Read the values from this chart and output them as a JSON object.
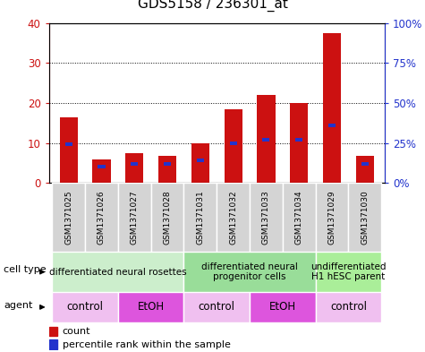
{
  "title": "GDS5158 / 236301_at",
  "samples": [
    "GSM1371025",
    "GSM1371026",
    "GSM1371027",
    "GSM1371028",
    "GSM1371031",
    "GSM1371032",
    "GSM1371033",
    "GSM1371034",
    "GSM1371029",
    "GSM1371030"
  ],
  "counts": [
    16.5,
    6.0,
    7.5,
    6.8,
    10.0,
    18.5,
    22.0,
    20.0,
    37.5,
    6.7
  ],
  "percentiles_pct": [
    24,
    10,
    12,
    12,
    14,
    25,
    27,
    27,
    36,
    12
  ],
  "ylim_left": [
    0,
    40
  ],
  "ylim_right": [
    0,
    100
  ],
  "yticks_left": [
    0,
    10,
    20,
    30,
    40
  ],
  "yticks_right": [
    0,
    25,
    50,
    75,
    100
  ],
  "ytick_labels_right": [
    "0%",
    "25%",
    "50%",
    "75%",
    "100%"
  ],
  "bar_color": "#cc1111",
  "blue_color": "#2233cc",
  "bar_width": 0.55,
  "cell_type_groups": [
    {
      "label": "differentiated neural rosettes",
      "indices": [
        0,
        1,
        2,
        3
      ],
      "color": "#cceecc"
    },
    {
      "label": "differentiated neural\nprogenitor cells",
      "indices": [
        4,
        5,
        6,
        7
      ],
      "color": "#99dd99"
    },
    {
      "label": "undifferentiated\nH1 hESC parent",
      "indices": [
        8,
        9
      ],
      "color": "#aaee99"
    }
  ],
  "agent_groups": [
    {
      "label": "control",
      "indices": [
        0,
        1
      ],
      "color": "#f0c0f0"
    },
    {
      "label": "EtOH",
      "indices": [
        2,
        3
      ],
      "color": "#dd55dd"
    },
    {
      "label": "control",
      "indices": [
        4,
        5
      ],
      "color": "#f0c0f0"
    },
    {
      "label": "EtOH",
      "indices": [
        6,
        7
      ],
      "color": "#dd55dd"
    },
    {
      "label": "control",
      "indices": [
        8,
        9
      ],
      "color": "#f0c0f0"
    }
  ],
  "bar_color_red": "#cc1111",
  "bar_color_blue": "#2233cc",
  "bg_color": "#ffffff",
  "title_fontsize": 11,
  "axis_tick_fontsize": 8.5,
  "sample_fontsize": 6.5,
  "celltype_fontsize": 7.5,
  "agent_fontsize": 8.5,
  "label_row_fontsize": 8,
  "legend_fontsize": 8
}
